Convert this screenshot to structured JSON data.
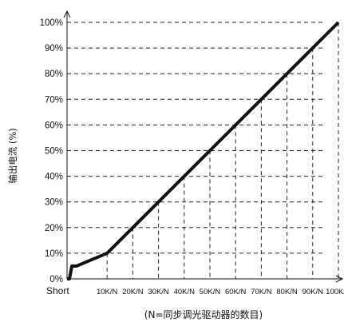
{
  "chart_data": {
    "type": "line",
    "ylabel": "输出电流 (%)",
    "xlabel": "(N=同步调光驱动器的数目)",
    "x_origin_label": "Short",
    "categories": [
      "10K/N",
      "20K/N",
      "30K/N",
      "40K/N",
      "50K/N",
      "60K/N",
      "70K/N",
      "80K/N",
      "90K/N",
      "100K/N"
    ],
    "yticks": [
      "0%",
      "10%",
      "20%",
      "30%",
      "40%",
      "50%",
      "60%",
      "70%",
      "80%",
      "90%",
      "100%"
    ],
    "ylim": [
      0,
      100
    ],
    "grid": true,
    "series": [
      {
        "x": [
          "Short",
          "Short",
          "Short",
          "Short",
          "10K/N",
          "20K/N",
          "30K/N",
          "40K/N",
          "50K/N",
          "60K/N",
          "70K/N",
          "80K/N",
          "90K/N",
          "100K/N"
        ],
        "values": [
          0,
          0,
          5,
          5,
          10,
          20,
          30,
          40,
          50,
          60,
          70,
          80,
          90,
          100
        ]
      }
    ]
  }
}
